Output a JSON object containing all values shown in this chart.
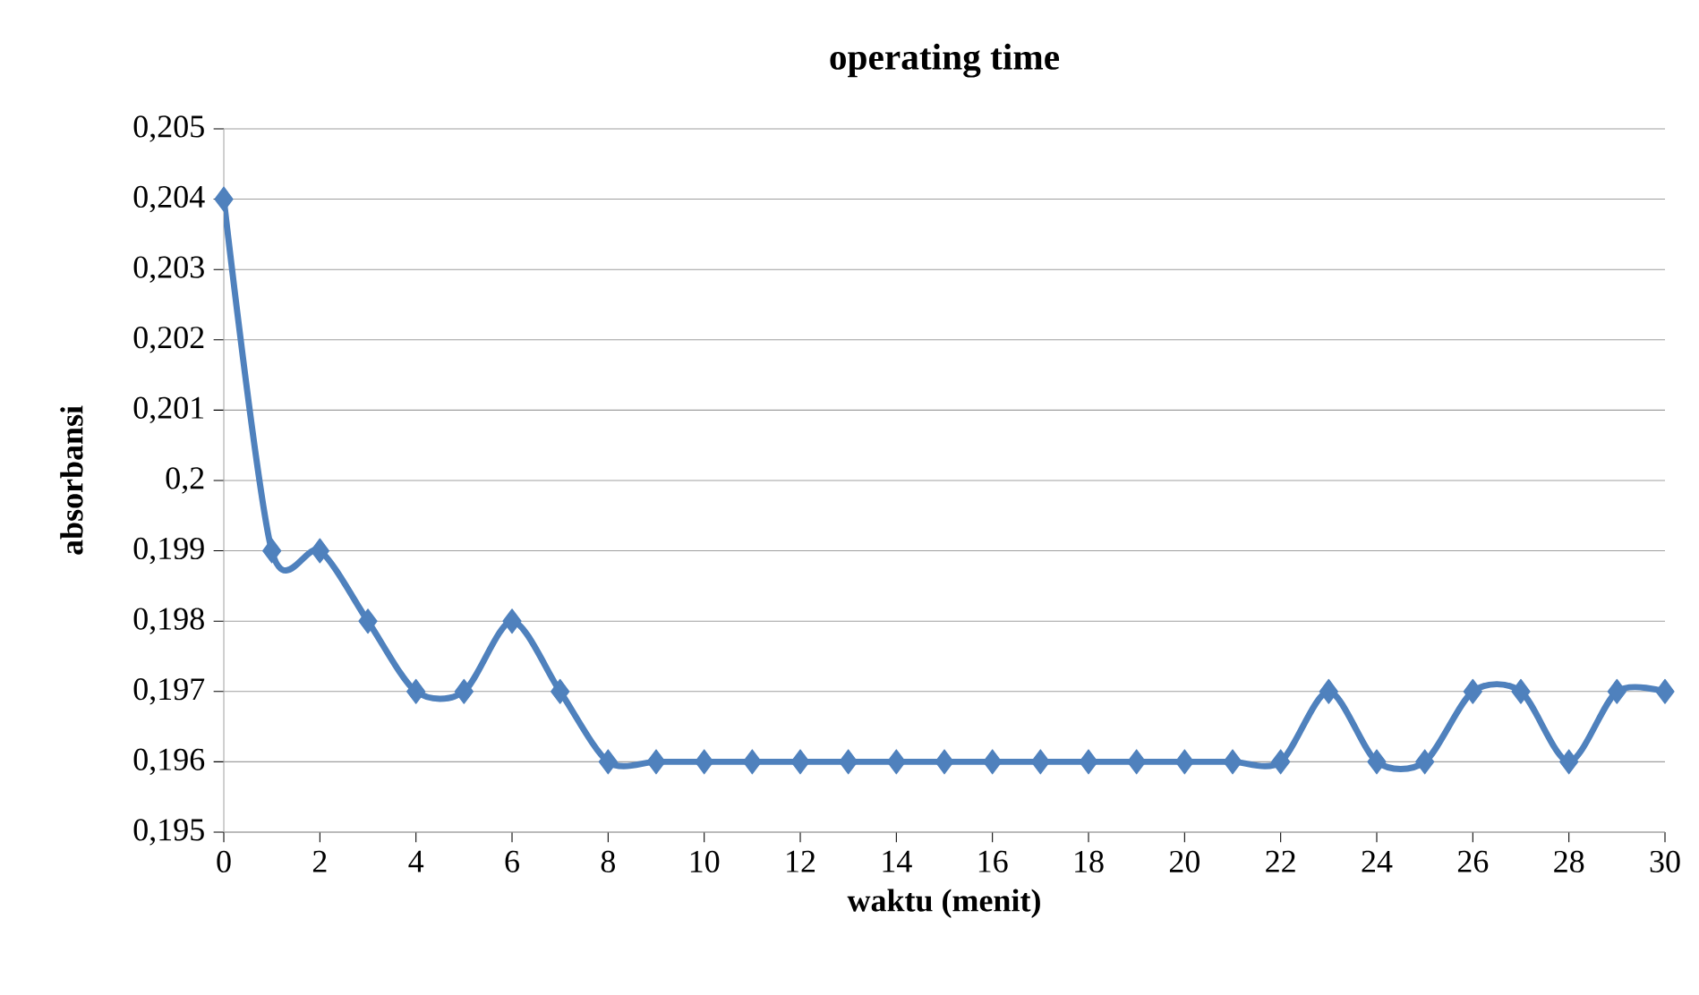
{
  "chart_data": {
    "type": "line",
    "title": "operating time",
    "xlabel": "waktu (menit)",
    "ylabel": "absorbansi",
    "x": [
      0,
      1,
      2,
      3,
      4,
      5,
      6,
      7,
      8,
      9,
      10,
      11,
      12,
      13,
      14,
      15,
      16,
      17,
      18,
      19,
      20,
      21,
      22,
      23,
      24,
      25,
      26,
      27,
      28,
      29,
      30
    ],
    "series": [
      {
        "color": "#4f81bd",
        "values": [
          0.204,
          0.199,
          0.199,
          0.198,
          0.197,
          0.197,
          0.198,
          0.197,
          0.196,
          0.196,
          0.196,
          0.196,
          0.196,
          0.196,
          0.196,
          0.196,
          0.196,
          0.196,
          0.196,
          0.196,
          0.196,
          0.196,
          0.196,
          0.197,
          0.196,
          0.196,
          0.197,
          0.197,
          0.196,
          0.197,
          0.197
        ]
      }
    ],
    "xlim": [
      0,
      30
    ],
    "xticks": [
      0,
      2,
      4,
      6,
      8,
      10,
      12,
      14,
      16,
      18,
      20,
      22,
      24,
      26,
      28,
      30
    ],
    "ylim": [
      0.195,
      0.205
    ],
    "yticks": [
      {
        "value": 0.195,
        "label": "0,195"
      },
      {
        "value": 0.196,
        "label": "0,196"
      },
      {
        "value": 0.197,
        "label": "0,197"
      },
      {
        "value": 0.198,
        "label": "0,198"
      },
      {
        "value": 0.199,
        "label": "0,199"
      },
      {
        "value": 0.2,
        "label": "0,2"
      },
      {
        "value": 0.201,
        "label": "0,201"
      },
      {
        "value": 0.202,
        "label": "0,202"
      },
      {
        "value": 0.203,
        "label": "0,203"
      },
      {
        "value": 0.204,
        "label": "0,204"
      },
      {
        "value": 0.205,
        "label": "0,205"
      }
    ],
    "grid": "y",
    "marker": "diamond",
    "line_style": "solid"
  }
}
